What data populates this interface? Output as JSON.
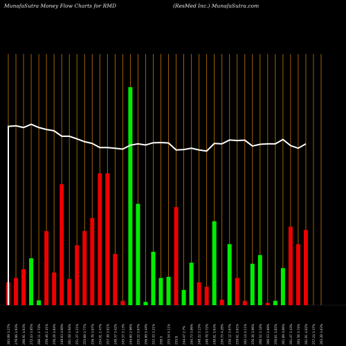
{
  "header": {
    "left": "MunafaSutra  Money Flow  Charts for RMD",
    "right": "(ResMed Inc.) MunafaSutra.com"
  },
  "chart_data": {
    "type": "bar",
    "title": "",
    "xlabel": "",
    "ylabel": "",
    "ylim": [
      0,
      100
    ],
    "grid": "vertical gridlines",
    "colors": {
      "up": "#00ee00",
      "down": "#ee0000",
      "price_line": "#ffffff",
      "grid": "#b26e00",
      "background": "#000000"
    },
    "categories": [
      "263.09  3.27%",
      "279.96  3.93%",
      "266.91  4.63%",
      "272.43  3.85%",
      "268.11  2.74%",
      "259.46  2.41%",
      "256.26  3.84%",
      "249.93  4.08%",
      "261.58  3.94%",
      "251.27  4.21%",
      "255.68  3.77%",
      "256.76  3.07%",
      "254.91  2.47%",
      "257.38  3.81%",
      "249.37  3.42%",
      "245.37  3.13%",
      "244.60  2.96%",
      "255.22  3.67%",
      "256.69  3.44%",
      "252.35  3.21%",
      "250.5",
      "255.54  4.11%",
      "255.9",
      "244.47  2.7%",
      "244.73  3.86%",
      "248.22  3.15%",
      "249.78  3.72%",
      "248.81  3.63%",
      "250.75  4.28%",
      "258.12  3.67%",
      "259.91  3.61%",
      "262.14  4.11%",
      "256.36  3.06%",
      "260.52  3.18%",
      "260.53  3.69%",
      "256.61  3.82%",
      "261.69  4.06%",
      "261.47  3.43%",
      "263.56  3.74%",
      "261.91  4.02%",
      "257.24  3.37%",
      "263.28  3.83%"
    ],
    "series": [
      {
        "values": [
          10.5,
          12.5,
          16.5,
          21.5,
          2.2,
          34.0,
          15.0,
          55.5,
          12.0,
          27.5,
          34.0,
          40.0,
          60.5,
          60.5,
          23.5,
          2.0,
          100.0,
          46.5,
          1.5,
          24.5,
          12.5,
          13.0,
          45.0,
          7.0,
          19.5,
          10.5,
          8.5,
          38.5,
          2.5,
          28.0,
          12.5,
          2.0,
          19.0,
          23.0,
          1.0,
          2.0,
          17.0,
          36.0,
          28.0,
          34.5,
          0,
          0
        ],
        "directions": [
          "down",
          "down",
          "down",
          "up",
          "up",
          "down",
          "down",
          "down",
          "down",
          "down",
          "down",
          "down",
          "down",
          "down",
          "down",
          "down",
          "up",
          "up",
          "up",
          "up",
          "up",
          "up",
          "down",
          "up",
          "up",
          "down",
          "down",
          "up",
          "down",
          "up",
          "down",
          "down",
          "up",
          "up",
          "down",
          "up",
          "up",
          "down",
          "down",
          "down",
          "down",
          "down"
        ]
      },
      {
        "values": [
          82.0,
          82.3,
          81.5,
          83.0,
          81.5,
          80.6,
          80.0,
          77.5,
          77.5,
          76.3,
          75.0,
          74.2,
          72.3,
          72.3,
          72.0,
          71.6,
          73.4,
          74.0,
          73.5,
          74.5,
          74.6,
          74.4,
          71.2,
          71.4,
          72.0,
          71.2,
          70.7,
          74.2,
          74.0,
          75.8,
          75.5,
          75.7,
          73.0,
          73.8,
          74.0,
          74.0,
          76.0,
          73.2,
          72.0,
          74.0,
          0,
          0
        ]
      }
    ]
  }
}
